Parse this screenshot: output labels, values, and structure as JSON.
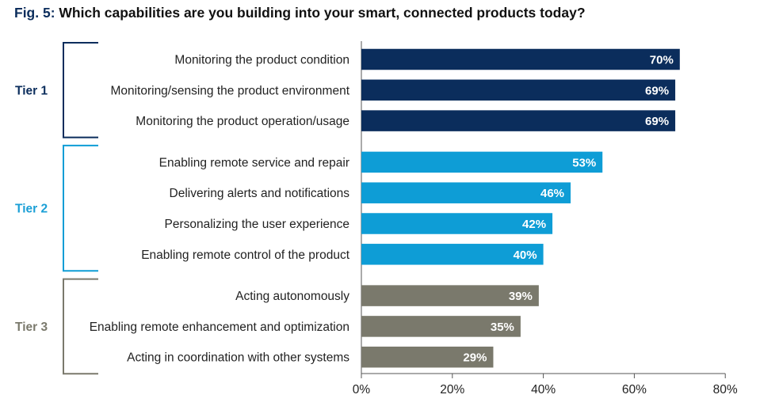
{
  "title_prefix": "Fig. 5:",
  "title_text": "Which capabilities are you building into your smart, connected products today?",
  "chart_data": {
    "type": "bar",
    "orientation": "horizontal",
    "title": "Fig. 5: Which capabilities are you building into your smart, connected products today?",
    "xlim": [
      0,
      80
    ],
    "xticks": [
      "0%",
      "20%",
      "40%",
      "60%",
      "80%"
    ],
    "tick_values": [
      0,
      20,
      40,
      60,
      80
    ],
    "value_suffix": "%",
    "groups": [
      {
        "name": "Tier 1",
        "color": "#0b2d5c",
        "label_color": "#0b2d5c",
        "items": [
          {
            "label": "Monitoring the product condition",
            "value": 70
          },
          {
            "label": "Monitoring/sensing the product environment",
            "value": 69
          },
          {
            "label": "Monitoring the product operation/usage",
            "value": 69
          }
        ]
      },
      {
        "name": "Tier 2",
        "color": "#0e9dd6",
        "label_color": "#1a9fd6",
        "items": [
          {
            "label": "Enabling remote service and repair",
            "value": 53
          },
          {
            "label": "Delivering alerts and notifications",
            "value": 46
          },
          {
            "label": "Personalizing the user experience",
            "value": 42
          },
          {
            "label": "Enabling remote control of the product",
            "value": 40
          }
        ]
      },
      {
        "name": "Tier 3",
        "color": "#7a796c",
        "label_color": "#7a796c",
        "items": [
          {
            "label": "Acting autonomously",
            "value": 39
          },
          {
            "label": "Enabling remote enhancement and optimization",
            "value": 35
          },
          {
            "label": "Acting in coordination with other systems",
            "value": 29
          }
        ]
      }
    ]
  }
}
